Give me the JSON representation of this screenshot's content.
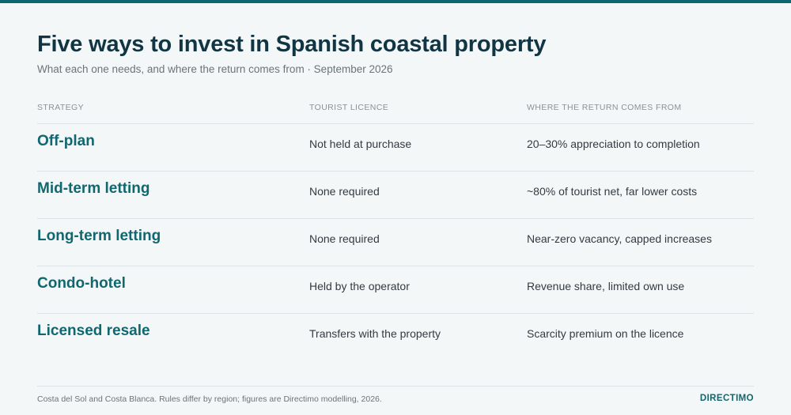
{
  "header": {
    "title": "Five ways to invest in Spanish coastal property",
    "subtitle": "What each one needs, and where the return comes from · September 2026"
  },
  "table": {
    "columns": [
      "STRATEGY",
      "TOURIST LICENCE",
      "WHERE THE RETURN COMES FROM"
    ],
    "rows": [
      [
        "Off-plan",
        "Not held at purchase",
        "20–30% appreciation to completion"
      ],
      [
        "Mid-term letting",
        "None required",
        "~80% of tourist net, far lower costs"
      ],
      [
        "Long-term letting",
        "None required",
        "Near-zero vacancy, capped increases"
      ],
      [
        "Condo-hotel",
        "Held by the operator",
        "Revenue share, limited own use"
      ],
      [
        "Licensed resale",
        "Transfers with the property",
        "Scarcity premium on the licence"
      ]
    ]
  },
  "footer": {
    "note": "Costa del Sol and Costa Blanca. Rules differ by region; figures are Directimo modelling, 2026.",
    "brand": "DIRECTIMO"
  }
}
